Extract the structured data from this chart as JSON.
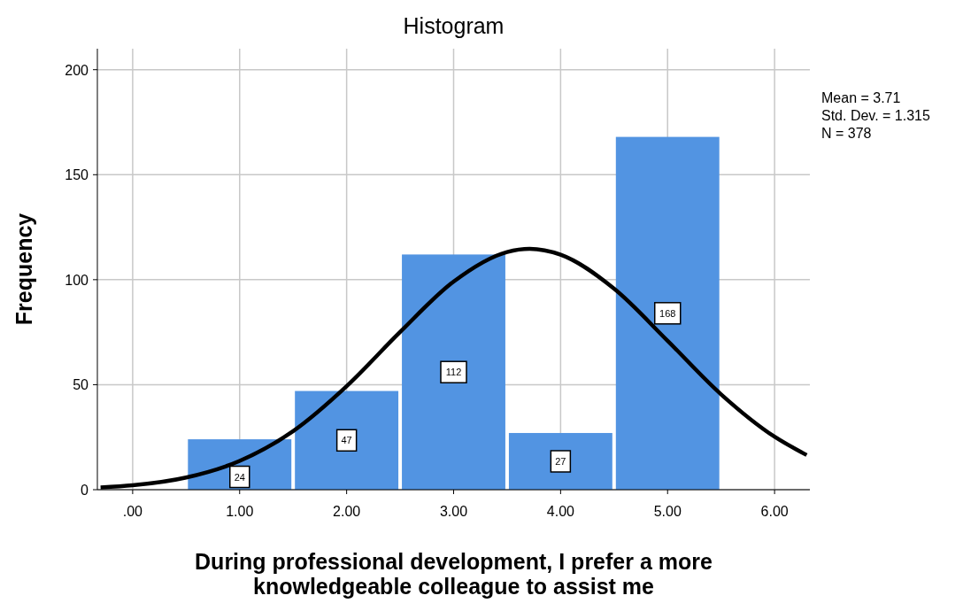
{
  "chart_data": {
    "type": "histogram",
    "title": "Histogram",
    "xlabel": "During professional development, I prefer a more knowledgeable colleague to assist me",
    "ylabel": "Frequency",
    "bins": [
      0.5,
      1.5,
      2.5,
      3.5,
      4.5,
      5.5
    ],
    "values": [
      24,
      47,
      112,
      27,
      168
    ],
    "color": "#5294e2",
    "value_labels": [
      "24",
      "47",
      "112",
      "27",
      "168"
    ],
    "series": [
      {
        "type": "line",
        "color": "#000000",
        "x": [
          -0.3,
          0,
          0.5,
          1,
          1.5,
          2,
          2.5,
          3,
          3.5,
          3.71,
          4,
          4.5,
          5,
          5.5,
          6,
          6.3
        ],
        "values": [
          1.1,
          2.1,
          5.8,
          13.7,
          27.9,
          49.3,
          75.1,
          99.1,
          113.2,
          114.7,
          111.9,
          95.7,
          70.9,
          45.4,
          25.2,
          16.5
        ]
      }
    ],
    "xlim": [
      -0.33,
      6.33
    ],
    "xticks": [
      {
        "value": 0,
        "label": ".00"
      },
      {
        "value": 1,
        "label": "1.00"
      },
      {
        "value": 2,
        "label": "2.00"
      },
      {
        "value": 3,
        "label": "3.00"
      },
      {
        "value": 4,
        "label": "4.00"
      },
      {
        "value": 5,
        "label": "5.00"
      },
      {
        "value": 6,
        "label": "6.00"
      }
    ],
    "ylim": [
      0,
      210
    ],
    "yticks": [
      0,
      50,
      100,
      150,
      200
    ],
    "grid": true,
    "annotations": [
      "Mean = 3.71",
      "Std. Dev. = 1.315",
      "N = 378"
    ]
  }
}
